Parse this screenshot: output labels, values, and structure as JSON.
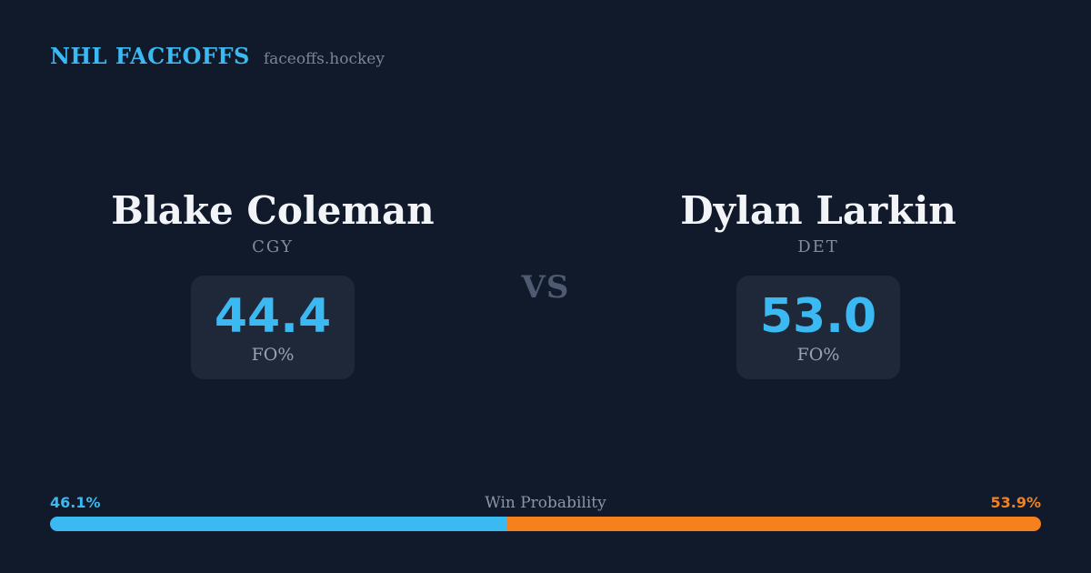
{
  "header": {
    "brand": "NHL FACEOFFS",
    "domain": "faceoffs.hockey"
  },
  "matchup": {
    "vs_label": "VS",
    "players": [
      {
        "name": "Blake Coleman",
        "team": "CGY",
        "stat_value": "44.4",
        "stat_label": "FO%"
      },
      {
        "name": "Dylan Larkin",
        "team": "DET",
        "stat_value": "53.0",
        "stat_label": "FO%"
      }
    ]
  },
  "win_probability": {
    "title": "Win Probability",
    "left_label": "46.1%",
    "right_label": "53.9%",
    "left_value": 46.1,
    "right_value": 53.9
  },
  "colors": {
    "background": "#111A2B",
    "card_background": "#1E2838",
    "accent_blue": "#3BB9F3",
    "accent_orange": "#F5801E"
  },
  "chart_data": {
    "type": "bar",
    "title": "Win Probability",
    "categories": [
      "Blake Coleman (CGY)",
      "Dylan Larkin (DET)"
    ],
    "values": [
      46.1,
      53.9
    ],
    "unit": "%"
  }
}
